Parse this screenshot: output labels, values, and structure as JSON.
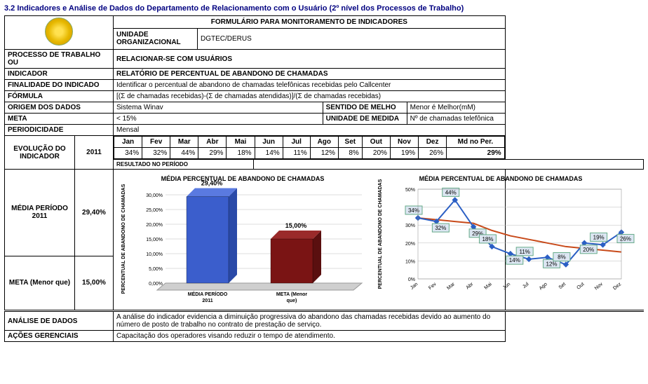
{
  "title": "3.2 Indicadores e Análise de Dados do Departamento de Relacionamento com o Usuário (2º nível dos Processos de Trabalho)",
  "form_title": "FORMULÁRIO PARA MONITORAMENTO DE INDICADORES",
  "rows": {
    "unidade_label": "UNIDADE ORGANIZACIONAL",
    "unidade_value": "DGTEC/DERUS",
    "processo_label": "PROCESSO DE TRABALHO OU",
    "processo_value": "RELACIONAR-SE COM USUÁRIOS",
    "indicador_label": "INDICADOR",
    "indicador_value": "RELATÓRIO DE PERCENTUAL DE ABANDONO DE CHAMADAS",
    "finalidade_label": "FINALIDADE DO INDICADO",
    "finalidade_value": "Identificar o percentual de abandono de chamadas telefônicas recebidas pelo Callcenter",
    "formula_label": "FÓRMULA",
    "formula_value": "[(Σ de chamadas recebidas)-(Σ de chamadas atendidas)]/(Σ de chamadas recebidas)",
    "origem_label": "ORIGEM DOS DADOS",
    "origem_value": "Sistema Winav",
    "sentido_label": "SENTIDO DE MELHO",
    "sentido_value": "Menor é Melhor(mM)",
    "meta_label": "META",
    "meta_value": "< 15%",
    "unidmed_label": "UNIDADE DE MEDIDA",
    "unidmed_value": "Nº de chamadas telefônica",
    "period_label": "PERIODICIDADE",
    "period_value": "Mensal",
    "evol_label": "EVOLUÇÃO DO INDICADOR",
    "year": "2011",
    "resultado_label": "RESULTADO NO PERÍODO",
    "media_label": "MÉDIA PERÍODO 2011",
    "media_value": "29,40%",
    "metaq_label": "META (Menor que)",
    "metaq_value": "15,00%",
    "analise_label": "ANÁLISE DE DADOS",
    "analise_value": "A análise do indicador evidencia a diminuição progressiva do abandono das chamadas recebidas devido ao aumento do número de posto de trabalho no contrato de prestação de serviço.",
    "acoes_label": "AÇÕES GERENCIAIS",
    "acoes_value": "Capacitação dos operadores visando reduzir o tempo de atendimento."
  },
  "months": [
    "Jan",
    "Fev",
    "Mar",
    "Abr",
    "Mai",
    "Jun",
    "Jul",
    "Ago",
    "Set",
    "Out",
    "Nov",
    "Dez",
    "Md no Per."
  ],
  "values_pct": [
    "34%",
    "32%",
    "44%",
    "29%",
    "18%",
    "14%",
    "11%",
    "12%",
    "8%",
    "20%",
    "19%",
    "26%",
    "29%"
  ],
  "bar_chart": {
    "title": "MÉDIA PERCENTUAL DE ABANDONO DE CHAMADAS",
    "y_label": "PERCENTUAL DE ABANDONO DE CHAMADAS",
    "yticks": [
      "0,00%",
      "5,00%",
      "10,00%",
      "15,00%",
      "20,00%",
      "25,00%",
      "30,00%"
    ],
    "bars": [
      {
        "label": "MÉDIA PERÍODO 2011",
        "value": 29.4,
        "value_label": "29,40%",
        "face": "#3b5ecc",
        "side": "#2a4aa8",
        "top": "#5a7ae0"
      },
      {
        "label": "META (Menor que)",
        "value": 15.0,
        "value_label": "15,00%",
        "face": "#7a1414",
        "side": "#5a0f0f",
        "top": "#9a2a2a"
      }
    ],
    "ymax": 30
  },
  "line_chart": {
    "title": "MÉDIA PERCENTUAL DE ABANDONO DE CHAMADAS",
    "y_label": "PERCENTUAL DE ABANDONO DE CHAMADAS",
    "yticks": [
      "0%",
      "10%",
      "20%",
      "30%",
      "40%",
      "50%"
    ],
    "ymax": 50,
    "x": [
      "Jan",
      "Fev",
      "Mar",
      "Abr",
      "Mai",
      "Jun",
      "Jul",
      "Ago",
      "Set",
      "Out",
      "Nov",
      "Dez"
    ],
    "series_blue": {
      "color": "#2b5fc4",
      "values": [
        34,
        32,
        44,
        29,
        18,
        14,
        11,
        12,
        8,
        20,
        19,
        26
      ]
    },
    "series_red": {
      "color": "#c84a1a",
      "values": [
        34,
        33,
        32,
        31,
        27,
        24,
        22,
        20,
        18,
        17,
        16,
        15
      ]
    },
    "data_labels": [
      "34%",
      "32%",
      "44%",
      "29%",
      "18%",
      "14%",
      "11%",
      "12%",
      "8%",
      "20%",
      "19%",
      "26%"
    ]
  }
}
